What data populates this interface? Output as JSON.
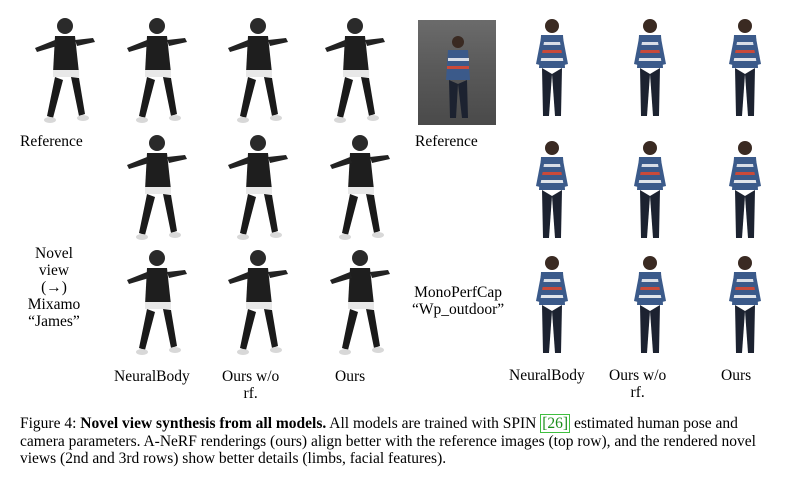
{
  "left_panel": {
    "reference_label": "Reference",
    "side_label": [
      "Novel",
      "view",
      "(→)",
      "Mixamo",
      "“James”"
    ],
    "col_labels": [
      "NeuralBody",
      "Ours w/o",
      "rf.",
      "Ours"
    ]
  },
  "right_panel": {
    "reference_label": "Reference",
    "side_label": [
      "MonoPerfCap",
      "“Wp_outdoor”"
    ],
    "col_labels": [
      "NeuralBody",
      "Ours w/o",
      "rf.",
      "Ours"
    ]
  },
  "caption": {
    "prefix": "Figure 4: ",
    "bold": "Novel view synthesis from all models.",
    "text1": " All models are trained with SPIN ",
    "cite": "[26]",
    "text2": " estimated human pose and camera parameters. A-NeRF renderings (ours) align better with the reference images (top row), and the rendered novel views (2nd and 3rd rows) show better details (limbs, facial features)."
  },
  "colors": {
    "dark_figure": "#1e1e1e",
    "stripe_shirt": "#3b5a8a",
    "cite_green": "#1a8c1a"
  }
}
